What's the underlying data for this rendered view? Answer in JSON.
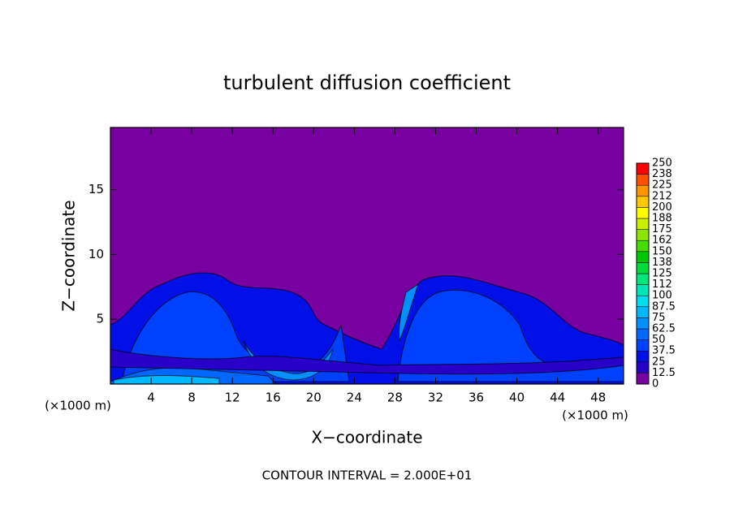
{
  "chart_data": {
    "type": "contour",
    "title": "turbulent diffusion coefficient",
    "xlabel": "X−coordinate",
    "ylabel": "Z−coordinate",
    "x_unit_labels": [
      "(×1000 m)",
      "(×1000 m)"
    ],
    "annotation": "CONTOUR INTERVAL = 2.000E+01",
    "xlim": [
      0,
      50.5
    ],
    "ylim": [
      0,
      19.8
    ],
    "xticks": [
      4,
      8,
      12,
      16,
      20,
      24,
      28,
      32,
      36,
      40,
      44,
      48
    ],
    "yticks": [
      5,
      10,
      15
    ],
    "background_color": "#7800a0",
    "colorbar": {
      "levels": [
        0,
        12.5,
        25,
        37.5,
        50,
        62.5,
        75,
        87.5,
        100,
        112,
        125,
        138,
        150,
        162,
        175,
        188,
        200,
        212,
        225,
        238,
        250
      ],
      "colors": [
        "#7800a0",
        "#2800c8",
        "#0010e6",
        "#0040ff",
        "#0068ff",
        "#0090ff",
        "#00b8ff",
        "#00dcf0",
        "#00e6b4",
        "#00e678",
        "#00dc3c",
        "#00c800",
        "#46dc00",
        "#8ce600",
        "#c8f000",
        "#ffff00",
        "#ffc800",
        "#ff9600",
        "#ff5000",
        "#ff0000"
      ]
    }
  }
}
